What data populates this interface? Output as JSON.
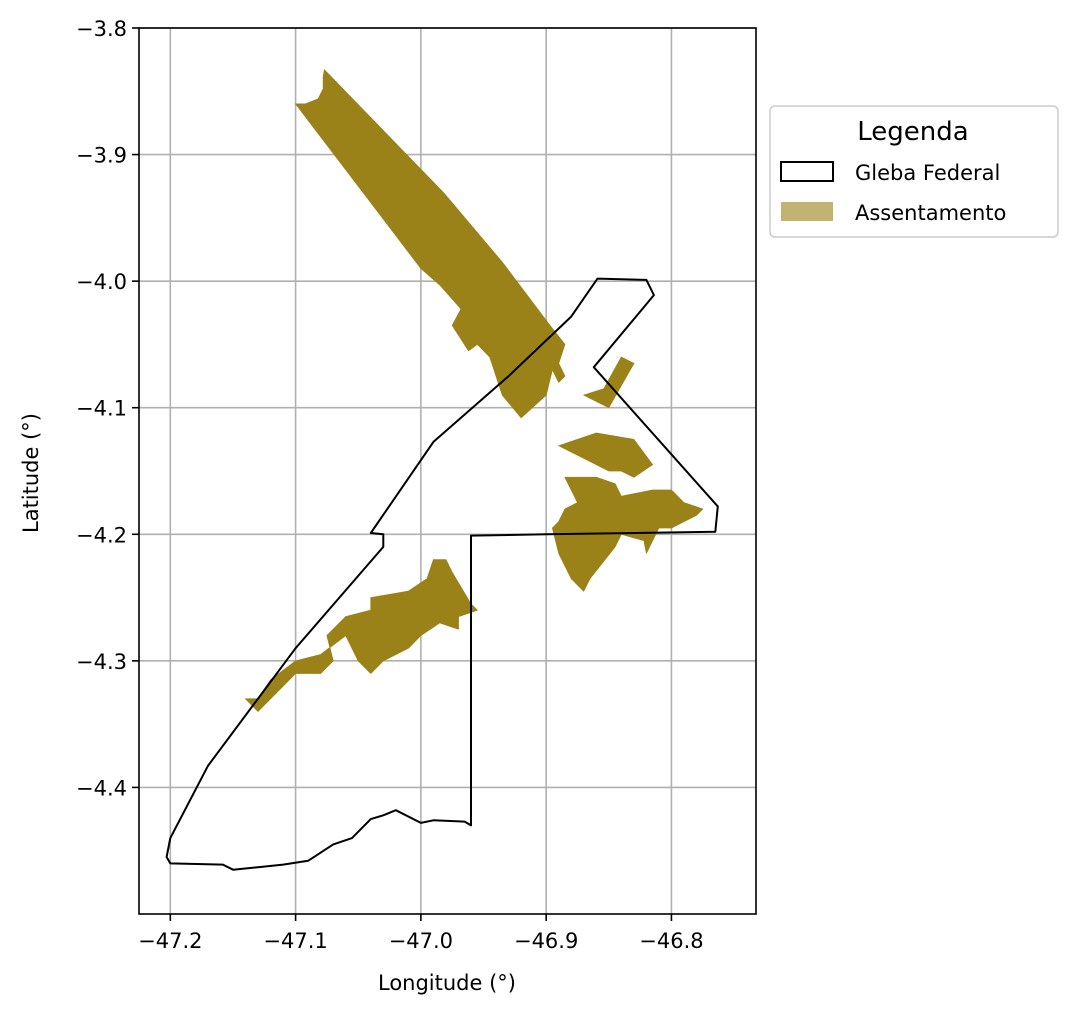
{
  "chart_data": {
    "type": "map",
    "xlabel": "Longitude (°)",
    "ylabel": "Latitude (°)",
    "xlim": [
      -47.225,
      -46.7325
    ],
    "ylim": [
      -4.5,
      -3.8
    ],
    "x_ticks": [
      -47.2,
      -47.1,
      -47.0,
      -46.9,
      -46.8
    ],
    "x_tick_labels": [
      "−47.2",
      "−47.1",
      "−47.0",
      "−46.9",
      "−46.8"
    ],
    "y_ticks": [
      -3.8,
      -3.9,
      -4.0,
      -4.1,
      -4.2,
      -4.3,
      -4.4
    ],
    "y_tick_labels": [
      "−3.8",
      "−3.9",
      "−4.0",
      "−4.1",
      "−4.2",
      "−4.3",
      "−4.4"
    ],
    "grid": true,
    "legend": {
      "title": "Legenda",
      "placement": "outside-upper-right",
      "entries": [
        {
          "label": "Gleba Federal",
          "style": "outline",
          "color": "#000000"
        },
        {
          "label": "Assentamento",
          "style": "fill",
          "color": "#c1b370"
        }
      ]
    },
    "colors": {
      "assentamento_fill": "#9a8219",
      "gleba_stroke": "#000000",
      "grid": "#b0b0b0"
    },
    "layers": [
      {
        "name": "Gleba Federal",
        "kind": "outline",
        "polygons": [
          [
            [
              -46.859,
              -3.998
            ],
            [
              -46.82,
              -3.999
            ],
            [
              -46.814,
              -4.011
            ],
            [
              -46.862,
              -4.068
            ],
            [
              -46.763,
              -4.178
            ],
            [
              -46.765,
              -4.198
            ],
            [
              -46.9,
              -4.2
            ],
            [
              -46.96,
              -4.201
            ],
            [
              -46.96,
              -4.43
            ],
            [
              -46.965,
              -4.427
            ],
            [
              -46.99,
              -4.426
            ],
            [
              -47.0,
              -4.428
            ],
            [
              -47.02,
              -4.418
            ],
            [
              -47.03,
              -4.422
            ],
            [
              -47.04,
              -4.425
            ],
            [
              -47.055,
              -4.44
            ],
            [
              -47.07,
              -4.445
            ],
            [
              -47.09,
              -4.458
            ],
            [
              -47.11,
              -4.461
            ],
            [
              -47.13,
              -4.463
            ],
            [
              -47.15,
              -4.465
            ],
            [
              -47.158,
              -4.461
            ],
            [
              -47.2,
              -4.46
            ],
            [
              -47.203,
              -4.455
            ],
            [
              -47.2,
              -4.44
            ],
            [
              -47.17,
              -4.383
            ],
            [
              -47.1,
              -4.29
            ],
            [
              -47.03,
              -4.21
            ],
            [
              -47.03,
              -4.2
            ],
            [
              -47.04,
              -4.199
            ],
            [
              -46.99,
              -4.127
            ],
            [
              -46.93,
              -4.075
            ],
            [
              -46.88,
              -4.028
            ]
          ]
        ]
      },
      {
        "name": "Assentamento",
        "kind": "fill",
        "polygons": [
          [
            [
              -47.1,
              -3.86
            ],
            [
              -47.092,
              -3.86
            ],
            [
              -47.082,
              -3.856
            ],
            [
              -47.078,
              -3.848
            ],
            [
              -47.078,
              -3.838
            ],
            [
              -47.077,
              -3.833
            ],
            [
              -46.982,
              -3.93
            ],
            [
              -46.935,
              -3.985
            ],
            [
              -46.897,
              -4.035
            ],
            [
              -46.885,
              -4.05
            ],
            [
              -46.89,
              -4.065
            ],
            [
              -46.885,
              -4.075
            ],
            [
              -46.89,
              -4.08
            ],
            [
              -46.895,
              -4.07
            ],
            [
              -46.9,
              -4.09
            ],
            [
              -46.92,
              -4.108
            ],
            [
              -46.935,
              -4.09
            ],
            [
              -46.945,
              -4.06
            ],
            [
              -46.955,
              -4.05
            ],
            [
              -46.962,
              -4.055
            ],
            [
              -46.975,
              -4.035
            ],
            [
              -46.968,
              -4.022
            ],
            [
              -46.985,
              -4.003
            ],
            [
              -47.0,
              -3.99
            ]
          ],
          [
            [
              -46.854,
              -4.085
            ],
            [
              -46.84,
              -4.06
            ],
            [
              -46.83,
              -4.065
            ],
            [
              -46.85,
              -4.1
            ],
            [
              -46.87,
              -4.09
            ]
          ],
          [
            [
              -46.89,
              -4.13
            ],
            [
              -46.86,
              -4.12
            ],
            [
              -46.83,
              -4.125
            ],
            [
              -46.815,
              -4.145
            ],
            [
              -46.83,
              -4.155
            ],
            [
              -46.84,
              -4.15
            ],
            [
              -46.85,
              -4.15
            ],
            [
              -46.87,
              -4.14
            ],
            [
              -46.88,
              -4.135
            ]
          ],
          [
            [
              -46.885,
              -4.155
            ],
            [
              -46.86,
              -4.155
            ],
            [
              -46.845,
              -4.16
            ],
            [
              -46.84,
              -4.17
            ],
            [
              -46.815,
              -4.165
            ],
            [
              -46.8,
              -4.165
            ],
            [
              -46.79,
              -4.175
            ],
            [
              -46.775,
              -4.18
            ],
            [
              -46.78,
              -4.185
            ],
            [
              -46.8,
              -4.195
            ],
            [
              -46.81,
              -4.195
            ],
            [
              -46.82,
              -4.215
            ],
            [
              -46.822,
              -4.205
            ],
            [
              -46.84,
              -4.2
            ],
            [
              -46.845,
              -4.21
            ],
            [
              -46.865,
              -4.235
            ],
            [
              -46.87,
              -4.245
            ],
            [
              -46.88,
              -4.235
            ],
            [
              -46.89,
              -4.215
            ],
            [
              -46.895,
              -4.195
            ],
            [
              -46.89,
              -4.19
            ],
            [
              -46.885,
              -4.18
            ],
            [
              -46.875,
              -4.175
            ],
            [
              -46.88,
              -4.165
            ]
          ],
          [
            [
              -47.04,
              -4.25
            ],
            [
              -47.01,
              -4.245
            ],
            [
              -46.995,
              -4.235
            ],
            [
              -46.99,
              -4.22
            ],
            [
              -46.98,
              -4.22
            ],
            [
              -46.975,
              -4.23
            ],
            [
              -46.96,
              -4.255
            ],
            [
              -46.955,
              -4.26
            ],
            [
              -46.97,
              -4.265
            ],
            [
              -46.97,
              -4.275
            ],
            [
              -46.985,
              -4.27
            ],
            [
              -47.0,
              -4.28
            ],
            [
              -47.01,
              -4.29
            ],
            [
              -47.03,
              -4.3
            ],
            [
              -47.04,
              -4.31
            ],
            [
              -47.05,
              -4.3
            ],
            [
              -47.06,
              -4.28
            ],
            [
              -47.08,
              -4.295
            ],
            [
              -47.1,
              -4.3
            ],
            [
              -47.12,
              -4.315
            ],
            [
              -47.13,
              -4.33
            ],
            [
              -47.14,
              -4.33
            ],
            [
              -47.13,
              -4.34
            ],
            [
              -47.1,
              -4.31
            ],
            [
              -47.08,
              -4.31
            ],
            [
              -47.07,
              -4.3
            ],
            [
              -47.075,
              -4.28
            ],
            [
              -47.06,
              -4.265
            ],
            [
              -47.04,
              -4.26
            ]
          ]
        ]
      }
    ]
  }
}
